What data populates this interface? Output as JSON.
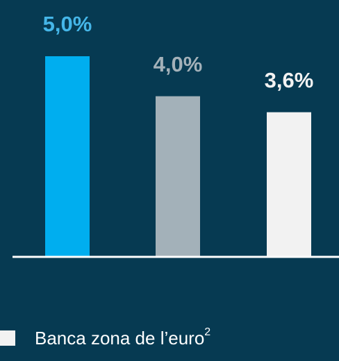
{
  "chart_data": {
    "type": "bar",
    "categories": [
      null,
      null,
      null
    ],
    "values": [
      5.0,
      4.0,
      3.6
    ],
    "value_labels": [
      "5,0%",
      "4,0%",
      "3,6%"
    ],
    "colors": [
      "#00aeef",
      "#a3b1b9",
      "#f2f2f2"
    ],
    "legend": [
      {
        "label": "Banca zona de l’euro",
        "superscript": "2",
        "color": "#f2f2f2"
      }
    ]
  }
}
